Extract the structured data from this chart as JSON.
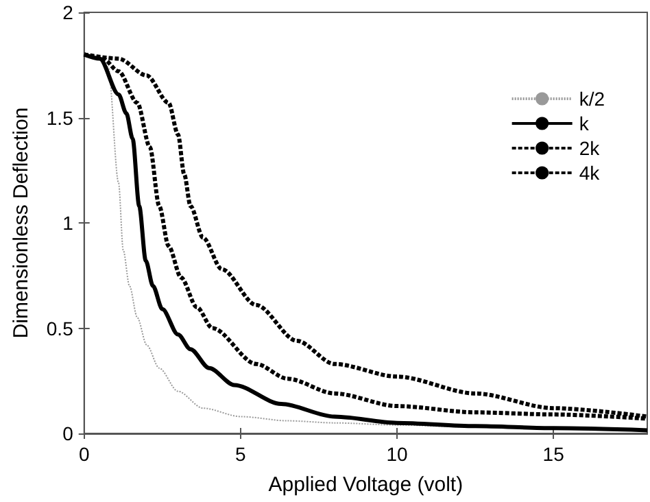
{
  "chart_data": {
    "type": "line",
    "xlabel": "Applied Voltage (volt)",
    "ylabel": "Dimensionless Deflection",
    "xlim": [
      0,
      18
    ],
    "xticks": [
      0,
      5,
      10,
      15
    ],
    "ylim": [
      0,
      2
    ],
    "yticks": [
      0,
      0.5,
      1,
      1.5,
      2
    ],
    "grid": false,
    "legend": "top right",
    "marker": "none",
    "series": [
      {
        "name": "k/2",
        "color": "#999999",
        "line_style": "dotted",
        "x": [
          0,
          0.4,
          0.77,
          1.1,
          1.25,
          1.45,
          1.7,
          2.0,
          2.4,
          3.0,
          3.8,
          5,
          6.5,
          8,
          10,
          12.5,
          15,
          18
        ],
        "values": [
          1.8,
          1.79,
          1.74,
          1.19,
          0.87,
          0.7,
          0.55,
          0.42,
          0.31,
          0.2,
          0.12,
          0.08,
          0.06,
          0.05,
          0.04,
          0.03,
          0.025,
          0.02
        ]
      },
      {
        "name": "k",
        "color": "#000000",
        "line_style": "solid",
        "x": [
          0,
          0.5,
          1.1,
          1.35,
          1.55,
          1.76,
          1.97,
          2.2,
          2.5,
          3.0,
          3.4,
          4.0,
          4.8,
          6.3,
          8,
          10,
          12.5,
          15,
          18
        ],
        "values": [
          1.8,
          1.78,
          1.61,
          1.52,
          1.4,
          1.08,
          0.82,
          0.7,
          0.59,
          0.47,
          0.4,
          0.31,
          0.23,
          0.14,
          0.08,
          0.05,
          0.035,
          0.025,
          0.015
        ]
      },
      {
        "name": "2k",
        "color": "#000000",
        "line_style": "dashed",
        "x": [
          0,
          0.6,
          1.1,
          1.7,
          2.1,
          2.4,
          2.7,
          3.1,
          3.6,
          4.1,
          5.5,
          6.5,
          8,
          10,
          12.5,
          15,
          18
        ],
        "values": [
          1.8,
          1.78,
          1.72,
          1.57,
          1.36,
          1.08,
          0.89,
          0.74,
          0.6,
          0.5,
          0.33,
          0.26,
          0.19,
          0.13,
          0.1,
          0.09,
          0.07
        ]
      },
      {
        "name": "4k",
        "color": "#000000",
        "line_style": "dashed",
        "x": [
          0,
          1.1,
          2.0,
          2.7,
          3.0,
          3.2,
          3.4,
          3.8,
          4.4,
          5.5,
          6.8,
          8,
          10,
          12.5,
          15,
          18
        ],
        "values": [
          1.8,
          1.78,
          1.7,
          1.57,
          1.42,
          1.23,
          1.08,
          0.93,
          0.78,
          0.61,
          0.44,
          0.33,
          0.27,
          0.19,
          0.12,
          0.08
        ]
      }
    ]
  }
}
